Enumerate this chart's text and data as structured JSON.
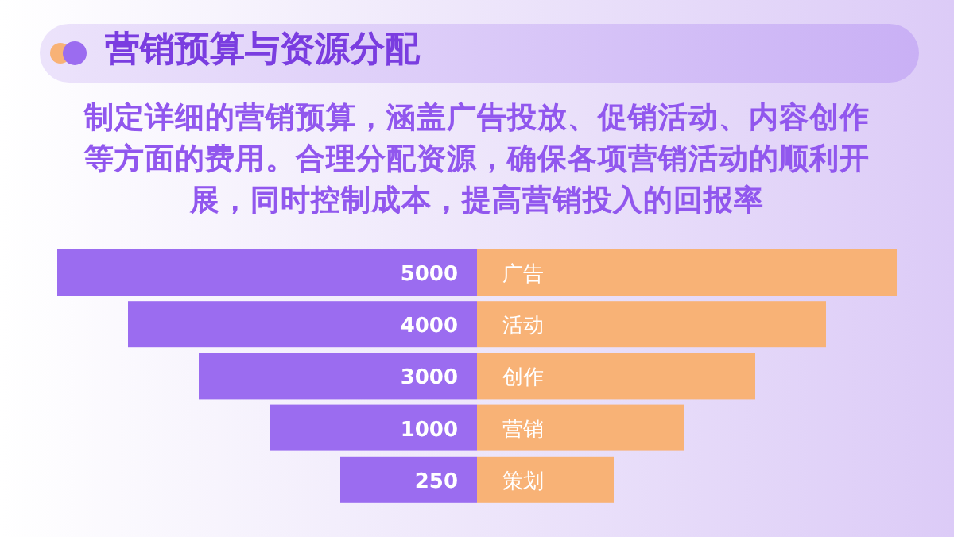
{
  "chart_data": {
    "type": "other",
    "title": "营销预算与资源分配",
    "subtitle": "制定详细的营销预算，涵盖广告投放、促销活动、内容创作等方面的费用。合理分配资源，确保各项营销活动的顺利开展，同时控制成本，提高营销投入的回报率",
    "categories": [
      "广告",
      "活动",
      "创作",
      "营销",
      "策划"
    ],
    "series": [
      {
        "color": "#9b6cf0",
        "values": [
          5000,
          4000,
          3000,
          1000,
          250
        ]
      }
    ],
    "data_labels": true
  }
}
